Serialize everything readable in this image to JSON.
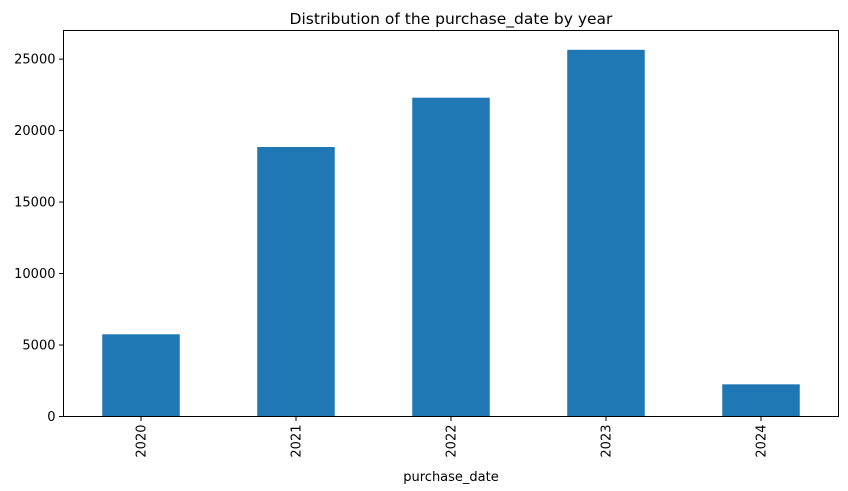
{
  "chart_data": {
    "type": "bar",
    "title": "Distribution of the purchase_date by year",
    "xlabel": "purchase_date",
    "ylabel": "",
    "categories": [
      "2020",
      "2021",
      "2022",
      "2023",
      "2024"
    ],
    "values": [
      5750,
      18850,
      22300,
      25650,
      2250
    ],
    "ylim": [
      0,
      27000
    ],
    "yticks": [
      0,
      5000,
      10000,
      15000,
      20000,
      25000
    ],
    "bar_color": "#1f77b4",
    "grid": false,
    "legend": "none",
    "xtick_rotation": "vertical"
  }
}
